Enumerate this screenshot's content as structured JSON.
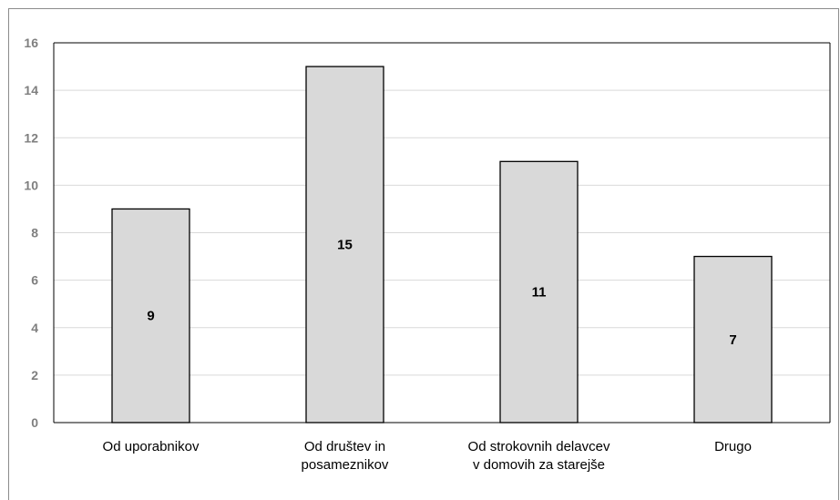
{
  "chart_data": {
    "type": "bar",
    "title": "",
    "xlabel": "",
    "ylabel": "",
    "categories": [
      [
        "Od uporabnikov"
      ],
      [
        "Od društev in",
        "posameznikov"
      ],
      [
        "Od strokovnih delavcev",
        "v domovih za starejše"
      ],
      [
        "Drugo"
      ]
    ],
    "values": [
      9,
      15,
      11,
      7
    ],
    "data_labels": [
      "9",
      "15",
      "11",
      "7"
    ],
    "ylim": [
      0,
      16
    ],
    "yticks": [
      0,
      2,
      4,
      6,
      8,
      10,
      12,
      14,
      16
    ],
    "grid": true,
    "legend": "none",
    "colors": {
      "bar_fill": "#d9d9d9",
      "bar_stroke": "#000000",
      "grid": "#d9d9d9",
      "axis": "#000000",
      "tick_text": "#7f7f7f"
    }
  }
}
